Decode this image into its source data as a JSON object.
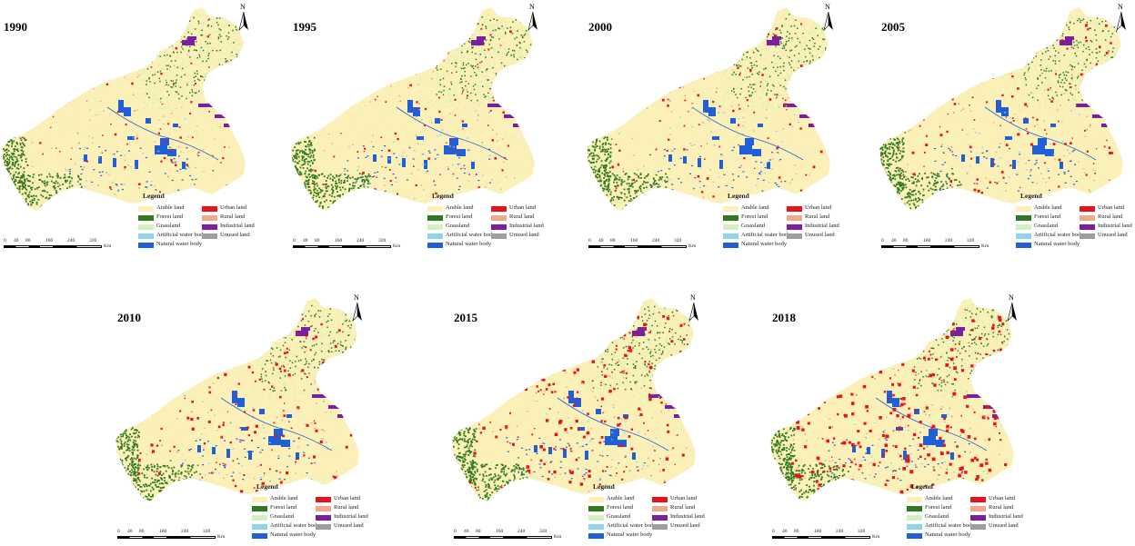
{
  "legend": {
    "title": "Legend",
    "items": [
      {
        "label": "Arable land",
        "color": "#fbf0b8"
      },
      {
        "label": "Forest land",
        "color": "#2f7a1e"
      },
      {
        "label": "Grassland",
        "color": "#d6efc0"
      },
      {
        "label": "Artificial water body",
        "color": "#8fd3ec"
      },
      {
        "label": "Natural water body",
        "color": "#1f5fd8"
      },
      {
        "label": "Urban land",
        "color": "#e8141b"
      },
      {
        "label": "Rural land",
        "color": "#f3a88c"
      },
      {
        "label": "Industrial land",
        "color": "#7a1fa0"
      },
      {
        "label": "Unused land",
        "color": "#9e9e9e"
      }
    ]
  },
  "scale": {
    "ticks": [
      "0",
      "40",
      "80",
      "160",
      "240",
      "320"
    ],
    "unit": "Km"
  },
  "north_label": "N",
  "panels": [
    {
      "year": "1990",
      "urban_level": 0.15
    },
    {
      "year": "1995",
      "urban_level": 0.2
    },
    {
      "year": "2000",
      "urban_level": 0.3
    },
    {
      "year": "2005",
      "urban_level": 0.4
    },
    {
      "year": "2010",
      "urban_level": 0.55
    },
    {
      "year": "2015",
      "urban_level": 0.7
    },
    {
      "year": "2018",
      "urban_level": 0.9
    }
  ]
}
